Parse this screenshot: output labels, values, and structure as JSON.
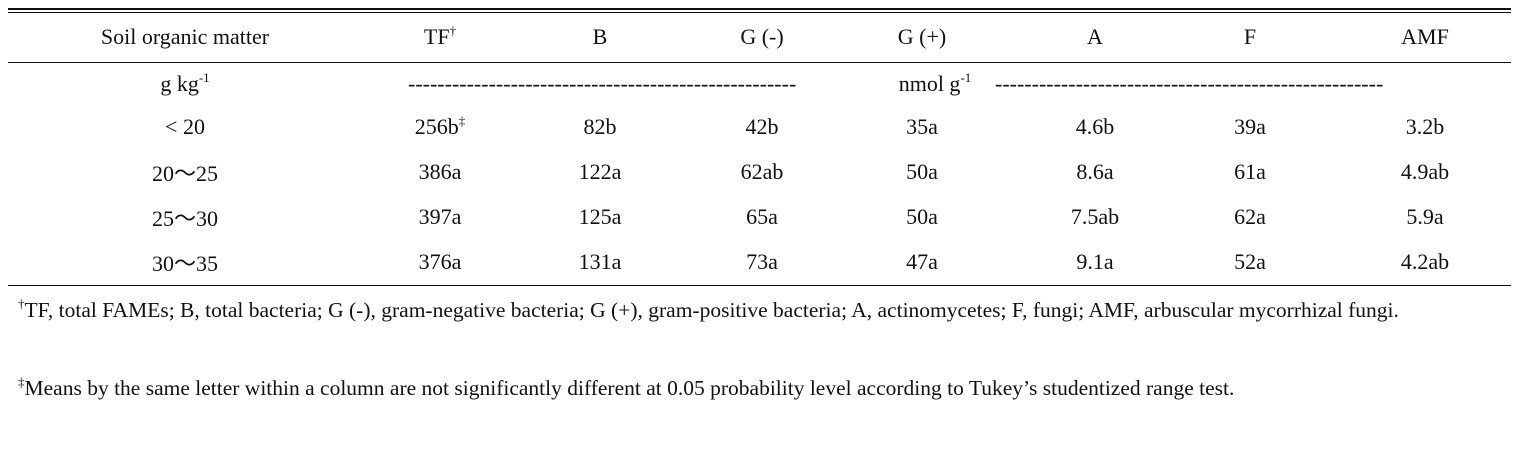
{
  "table": {
    "header": [
      {
        "text": "Soil  organic  matter"
      },
      {
        "text": "TF",
        "sup": "†"
      },
      {
        "text": "B"
      },
      {
        "text": "G  (-)"
      },
      {
        "text": "G  (+)"
      },
      {
        "text": "A"
      },
      {
        "text": "F"
      },
      {
        "text": "AMF"
      }
    ],
    "units": {
      "soil": {
        "text": "g  kg",
        "sup": "-1"
      },
      "left_dashes": "-----------------------------------------------------",
      "fames": {
        "text": "nmol  g",
        "sup": "-1"
      },
      "right_dashes": "-----------------------------------------------------"
    },
    "rows": [
      [
        {
          "text": "<  20"
        },
        {
          "text": "256b",
          "sup": "‡"
        },
        {
          "text": "82b"
        },
        {
          "text": "42b"
        },
        {
          "text": "35a"
        },
        {
          "text": "4.6b"
        },
        {
          "text": "39a"
        },
        {
          "text": "3.2b"
        }
      ],
      [
        {
          "text": "20～25"
        },
        {
          "text": "386a"
        },
        {
          "text": "122a"
        },
        {
          "text": "62ab"
        },
        {
          "text": "50a"
        },
        {
          "text": "8.6a"
        },
        {
          "text": "61a"
        },
        {
          "text": "4.9ab"
        }
      ],
      [
        {
          "text": "25～30"
        },
        {
          "text": "397a"
        },
        {
          "text": "125a"
        },
        {
          "text": "65a"
        },
        {
          "text": "50a"
        },
        {
          "text": "7.5ab"
        },
        {
          "text": "62a"
        },
        {
          "text": "5.9a"
        }
      ],
      [
        {
          "text": "30～35"
        },
        {
          "text": "376a"
        },
        {
          "text": "131a"
        },
        {
          "text": "73a"
        },
        {
          "text": "47a"
        },
        {
          "text": "9.1a"
        },
        {
          "text": "52a"
        },
        {
          "text": "4.2ab"
        }
      ]
    ]
  },
  "footnotes": [
    {
      "mark": "†",
      "text": "TF, total FAMEs; B, total bacteria; G (-), gram-negative bacteria; G (+), gram-positive bacteria; A, actinomycetes; F, fungi; AMF, arbuscular mycorrhizal fungi."
    },
    {
      "mark": "‡",
      "text": "Means by the same letter within a column are not significantly different at 0.05 probability level according to Tukey’s studentized range test."
    }
  ]
}
